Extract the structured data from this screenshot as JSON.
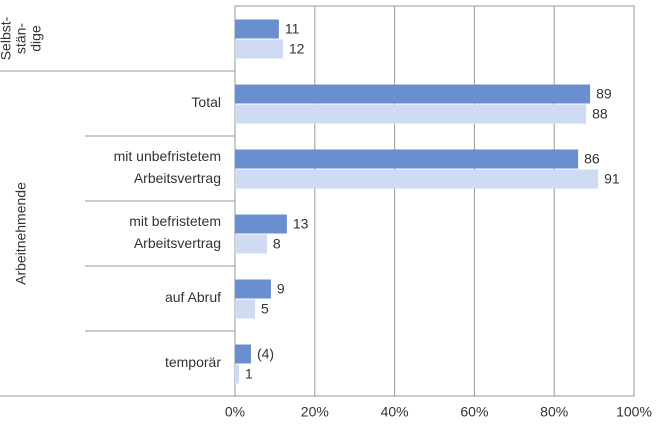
{
  "chart_data": {
    "type": "bar",
    "orientation": "horizontal",
    "groups": [
      {
        "label": [
          "Selbst-",
          "stän-",
          "dige"
        ],
        "rows": [
          0
        ]
      },
      {
        "label": [
          "Arbeitnehmende"
        ],
        "rows": [
          1,
          2,
          3,
          4,
          5
        ]
      }
    ],
    "categories": [
      null,
      [
        "Total"
      ],
      [
        "mit unbefristetem",
        "Arbeitsvertrag"
      ],
      [
        "mit befristetem",
        "Arbeitsvertrag"
      ],
      [
        "auf Abruf"
      ],
      [
        "temporär"
      ]
    ],
    "series": [
      {
        "color": "#6a8fd0",
        "values": [
          11,
          89,
          86,
          13,
          9,
          4
        ],
        "value_labels": [
          null,
          null,
          null,
          null,
          null,
          "(4)"
        ]
      },
      {
        "color": "#cfdaf3",
        "values": [
          12,
          88,
          91,
          8,
          5,
          1
        ]
      }
    ],
    "xlim": [
      0,
      100
    ],
    "xticks": [
      {
        "value": 0,
        "label": "0%"
      },
      {
        "value": 20,
        "label": "20%"
      },
      {
        "value": 40,
        "label": "40%"
      },
      {
        "value": 60,
        "label": "60%"
      },
      {
        "value": 80,
        "label": "80%"
      },
      {
        "value": 100,
        "label": "100%"
      }
    ],
    "grid": true
  }
}
